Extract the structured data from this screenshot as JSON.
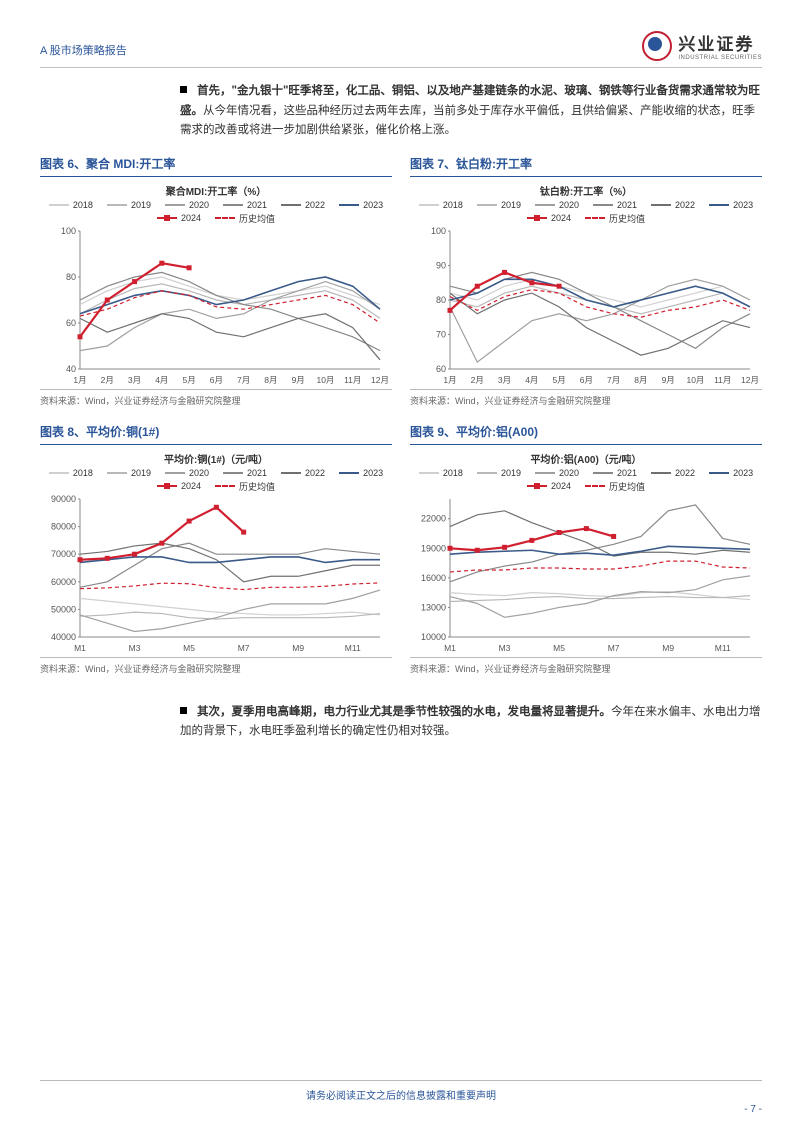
{
  "header": {
    "report_type": "A 股市场策略报告",
    "brand_cn": "兴业证券",
    "brand_en": "INDUSTRIAL SECURITIES"
  },
  "para1": {
    "bold": "首先，\"金九银十\"旺季将至，化工品、铜铝、以及地产基建链条的水泥、玻璃、钢铁等行业备货需求通常较为旺盛。",
    "rest": "从今年情况看，这些品种经历过去两年去库，当前多处于库存水平偏低，且供给偏紧、产能收缩的状态，旺季需求的改善或将进一步加剧供给紧张，催化价格上涨。"
  },
  "para2": {
    "bold": "其次，夏季用电高峰期，电力行业尤其是季节性较强的水电，发电量将显著提升。",
    "rest": "今年在来水偏丰、水电出力增加的背景下，水电旺季盈利增长的确定性仍相对较强。"
  },
  "source_text": "资料来源：Wind，兴业证券经济与金融研究院整理",
  "footer_text": "请务必阅读正文之后的信息披露和重要声明",
  "page_number": "- 7 -",
  "legend_labels": {
    "y2018": "2018",
    "y2019": "2019",
    "y2020": "2020",
    "y2021": "2021",
    "y2022": "2022",
    "y2023": "2023",
    "y2024": "2024",
    "avg": "历史均值"
  },
  "colors": {
    "y2018": "#d0d0d0",
    "y2019": "#b8b8b8",
    "y2020": "#a0a0a0",
    "y2021": "#888888",
    "y2022": "#707070",
    "y2023": "#3a5a8a",
    "y2024": "#d02030",
    "avg": "#d02030",
    "axis": "#888888",
    "text": "#333333",
    "title_blue": "#2a5599"
  },
  "chart6": {
    "title_outer": "图表 6、聚合 MDI:开工率",
    "title_inner": "聚合MDI:开工率（%）",
    "x_labels": [
      "1月",
      "2月",
      "3月",
      "4月",
      "5月",
      "6月",
      "7月",
      "8月",
      "9月",
      "10月",
      "11月",
      "12月"
    ],
    "ylim": [
      40,
      100
    ],
    "yticks": [
      40,
      60,
      80,
      100
    ],
    "series": {
      "y2018": [
        68,
        74,
        78,
        80,
        76,
        72,
        70,
        72,
        74,
        76,
        72,
        68
      ],
      "y2019": [
        64,
        70,
        75,
        77,
        74,
        70,
        68,
        70,
        72,
        74,
        70,
        62
      ],
      "y2020": [
        48,
        50,
        58,
        64,
        66,
        62,
        64,
        70,
        74,
        78,
        74,
        66
      ],
      "y2021": [
        70,
        76,
        80,
        82,
        78,
        72,
        68,
        66,
        62,
        58,
        54,
        48
      ],
      "y2022": [
        62,
        56,
        60,
        64,
        62,
        56,
        54,
        58,
        62,
        64,
        58,
        44
      ],
      "y2023": [
        64,
        68,
        72,
        74,
        72,
        68,
        70,
        74,
        78,
        80,
        76,
        66
      ],
      "y2024": [
        54,
        70,
        78,
        86,
        84
      ],
      "avg": [
        63,
        66,
        71,
        74,
        72,
        67,
        66,
        68,
        70,
        72,
        68,
        60
      ]
    }
  },
  "chart7": {
    "title_outer": "图表 7、钛白粉:开工率",
    "title_inner": "钛白粉:开工率（%）",
    "x_labels": [
      "1月",
      "2月",
      "3月",
      "4月",
      "5月",
      "6月",
      "7月",
      "8月",
      "9月",
      "10月",
      "11月",
      "12月"
    ],
    "ylim": [
      60,
      100
    ],
    "yticks": [
      60,
      70,
      80,
      90,
      100
    ],
    "series": {
      "y2018": [
        82,
        80,
        84,
        86,
        84,
        82,
        80,
        78,
        80,
        82,
        84,
        80
      ],
      "y2019": [
        80,
        78,
        82,
        84,
        82,
        80,
        78,
        76,
        78,
        80,
        82,
        78
      ],
      "y2020": [
        78,
        62,
        68,
        74,
        76,
        74,
        76,
        80,
        84,
        86,
        84,
        80
      ],
      "y2021": [
        84,
        82,
        86,
        88,
        86,
        82,
        78,
        74,
        70,
        66,
        72,
        76
      ],
      "y2022": [
        82,
        76,
        80,
        82,
        78,
        72,
        68,
        64,
        66,
        70,
        74,
        72
      ],
      "y2023": [
        80,
        82,
        86,
        86,
        84,
        80,
        78,
        80,
        82,
        84,
        82,
        78
      ],
      "y2024": [
        77,
        84,
        88,
        85,
        84
      ],
      "avg": [
        81,
        77,
        81,
        83,
        82,
        78,
        76,
        75,
        77,
        78,
        80,
        77
      ]
    }
  },
  "chart8": {
    "title_outer": "图表 8、平均价:铜(1#)",
    "title_inner": "平均价:铜(1#)（元/吨）",
    "x_labels": [
      "M1",
      "M3",
      "M5",
      "M7",
      "M9",
      "M11"
    ],
    "ylim": [
      40000,
      90000
    ],
    "yticks": [
      40000,
      50000,
      60000,
      70000,
      80000,
      90000
    ],
    "series": {
      "y2018": [
        54000,
        53000,
        52000,
        51000,
        50000,
        49000,
        48500,
        48000,
        48000,
        48500,
        49000,
        48000
      ],
      "y2019": [
        47500,
        48000,
        49000,
        48500,
        47000,
        46500,
        47000,
        47000,
        47000,
        47000,
        47500,
        48500
      ],
      "y2020": [
        48000,
        45000,
        42000,
        43000,
        45000,
        47000,
        50000,
        52000,
        52000,
        52000,
        54000,
        57000
      ],
      "y2021": [
        58000,
        60000,
        66000,
        72000,
        74000,
        70000,
        70000,
        70000,
        70000,
        72000,
        71000,
        70000
      ],
      "y2022": [
        70000,
        71000,
        73000,
        74000,
        72000,
        68000,
        60000,
        62000,
        62000,
        64000,
        66000,
        66000
      ],
      "y2023": [
        67000,
        68000,
        69000,
        69000,
        67000,
        67000,
        68000,
        69000,
        69000,
        67000,
        68000,
        68000
      ],
      "y2024": [
        68000,
        68500,
        70000,
        74000,
        82000,
        87000,
        78000
      ],
      "avg": [
        57500,
        57800,
        58500,
        59500,
        59300,
        57900,
        57200,
        58000,
        58000,
        58400,
        59200,
        59600
      ]
    }
  },
  "chart9": {
    "title_outer": "图表 9、平均价:铝(A00)",
    "title_inner": "平均价:铝(A00)（元/吨）",
    "x_labels": [
      "M1",
      "M3",
      "M5",
      "M7",
      "M9",
      "M11"
    ],
    "ylim": [
      10000,
      24000
    ],
    "yticks": [
      10000,
      13000,
      16000,
      19000,
      22000
    ],
    "series": {
      "y2018": [
        14500,
        14300,
        14200,
        14500,
        14400,
        14200,
        14100,
        14500,
        14600,
        14300,
        14000,
        13800
      ],
      "y2019": [
        13600,
        13700,
        13800,
        14000,
        14100,
        13900,
        13900,
        14000,
        14100,
        14000,
        14000,
        14200
      ],
      "y2020": [
        14100,
        13400,
        12000,
        12400,
        13000,
        13400,
        14200,
        14600,
        14500,
        14800,
        15800,
        16200
      ],
      "y2021": [
        15600,
        16600,
        17200,
        17600,
        18400,
        18800,
        19400,
        20200,
        22800,
        23400,
        20000,
        19400
      ],
      "y2022": [
        21200,
        22400,
        22800,
        21600,
        20600,
        19600,
        18200,
        18600,
        18600,
        18400,
        18800,
        18600
      ],
      "y2023": [
        18400,
        18600,
        18700,
        18800,
        18400,
        18500,
        18300,
        18700,
        19200,
        19100,
        19000,
        18900
      ],
      "y2024": [
        19000,
        18800,
        19100,
        19800,
        20600,
        21000,
        20200
      ],
      "avg": [
        16600,
        16800,
        16800,
        17000,
        17000,
        16900,
        16900,
        17200,
        17700,
        17700,
        17100,
        17000
      ]
    }
  }
}
